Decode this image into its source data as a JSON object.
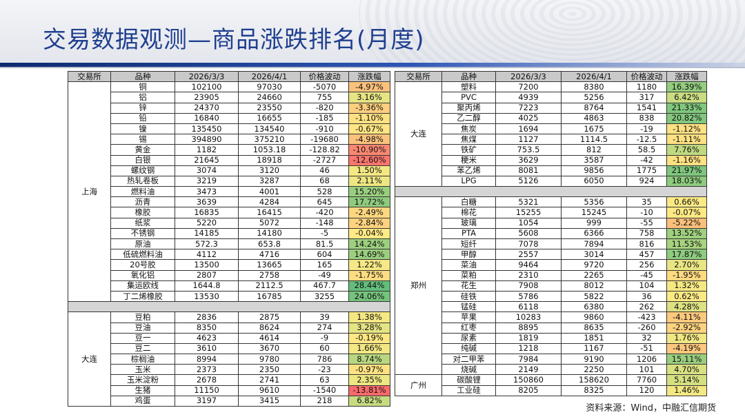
{
  "title": "交易数据观测—商品涨跌排名(月度)",
  "source": "资料来源：Wind，中融汇信期货",
  "headers": [
    "交易所",
    "品种",
    "2026/3/3",
    "2026/4/1",
    "价格波动",
    "涨跌幅"
  ],
  "colors": {
    "title": "#1f3f8f",
    "header_bg": "#c9c9c9",
    "change_scale": [
      "#f8696b",
      "#fcbf7b",
      "#ffeb84",
      "#b1d580",
      "#63be7b"
    ]
  },
  "left_table": [
    {
      "exchange": "上海",
      "rows": [
        {
          "name": "铜",
          "d1": "102100",
          "d2": "97030",
          "diff": "-5070",
          "pct": "-4.97%",
          "v": -4.97
        },
        {
          "name": "铝",
          "d1": "23905",
          "d2": "24660",
          "diff": "755",
          "pct": "3.16%",
          "v": 3.16
        },
        {
          "name": "锌",
          "d1": "24370",
          "d2": "23550",
          "diff": "-820",
          "pct": "-3.36%",
          "v": -3.36
        },
        {
          "name": "铅",
          "d1": "16840",
          "d2": "16655",
          "diff": "-185",
          "pct": "-1.10%",
          "v": -1.1
        },
        {
          "name": "镍",
          "d1": "135450",
          "d2": "134540",
          "diff": "-910",
          "pct": "-0.67%",
          "v": -0.67
        },
        {
          "name": "锡",
          "d1": "394890",
          "d2": "375210",
          "diff": "-19680",
          "pct": "-4.98%",
          "v": -4.98
        },
        {
          "name": "黄金",
          "d1": "1182",
          "d2": "1053.18",
          "diff": "-128.82",
          "pct": "-10.90%",
          "v": -10.9
        },
        {
          "name": "白银",
          "d1": "21645",
          "d2": "18918",
          "diff": "-2727",
          "pct": "-12.60%",
          "v": -12.6
        },
        {
          "name": "螺纹钢",
          "d1": "3074",
          "d2": "3120",
          "diff": "46",
          "pct": "1.50%",
          "v": 1.5
        },
        {
          "name": "热轧卷板",
          "d1": "3219",
          "d2": "3287",
          "diff": "68",
          "pct": "2.11%",
          "v": 2.11
        },
        {
          "name": "燃料油",
          "d1": "3473",
          "d2": "4001",
          "diff": "528",
          "pct": "15.20%",
          "v": 15.2
        },
        {
          "name": "沥青",
          "d1": "3639",
          "d2": "4284",
          "diff": "645",
          "pct": "17.72%",
          "v": 17.72
        },
        {
          "name": "橡胶",
          "d1": "16835",
          "d2": "16415",
          "diff": "-420",
          "pct": "-2.49%",
          "v": -2.49
        },
        {
          "name": "纸浆",
          "d1": "5220",
          "d2": "5072",
          "diff": "-148",
          "pct": "-2.84%",
          "v": -2.84
        },
        {
          "name": "不锈钢",
          "d1": "14185",
          "d2": "14180",
          "diff": "-5",
          "pct": "-0.04%",
          "v": -0.04
        },
        {
          "name": "原油",
          "d1": "572.3",
          "d2": "653.8",
          "diff": "81.5",
          "pct": "14.24%",
          "v": 14.24
        },
        {
          "name": "低硫燃料油",
          "d1": "4112",
          "d2": "4716",
          "diff": "604",
          "pct": "14.69%",
          "v": 14.69
        },
        {
          "name": "20号胶",
          "d1": "13500",
          "d2": "13665",
          "diff": "165",
          "pct": "1.22%",
          "v": 1.22
        },
        {
          "name": "氧化铝",
          "d1": "2807",
          "d2": "2758",
          "diff": "-49",
          "pct": "-1.75%",
          "v": -1.75
        },
        {
          "name": "集运欧线",
          "d1": "1644.8",
          "d2": "2112.5",
          "diff": "467.7",
          "pct": "28.44%",
          "v": 28.44
        },
        {
          "name": "丁二烯橡胶",
          "d1": "13530",
          "d2": "16785",
          "diff": "3255",
          "pct": "24.06%",
          "v": 24.06
        }
      ]
    },
    {
      "gap": true
    },
    {
      "exchange": "大连",
      "rows": [
        {
          "name": "豆粕",
          "d1": "2836",
          "d2": "2875",
          "diff": "39",
          "pct": "1.38%",
          "v": 1.38
        },
        {
          "name": "豆油",
          "d1": "8350",
          "d2": "8624",
          "diff": "274",
          "pct": "3.28%",
          "v": 3.28
        },
        {
          "name": "豆一",
          "d1": "4623",
          "d2": "4614",
          "diff": "-9",
          "pct": "-0.19%",
          "v": -0.19
        },
        {
          "name": "豆二",
          "d1": "3610",
          "d2": "3670",
          "diff": "60",
          "pct": "1.66%",
          "v": 1.66
        },
        {
          "name": "棕榈油",
          "d1": "8994",
          "d2": "9780",
          "diff": "786",
          "pct": "8.74%",
          "v": 8.74
        },
        {
          "name": "玉米",
          "d1": "2373",
          "d2": "2350",
          "diff": "-23",
          "pct": "-0.97%",
          "v": -0.97
        },
        {
          "name": "玉米淀粉",
          "d1": "2678",
          "d2": "2741",
          "diff": "63",
          "pct": "2.35%",
          "v": 2.35
        },
        {
          "name": "生猪",
          "d1": "11150",
          "d2": "9610",
          "diff": "-1540",
          "pct": "-13.81%",
          "v": -13.81
        },
        {
          "name": "鸡蛋",
          "d1": "3197",
          "d2": "3415",
          "diff": "218",
          "pct": "6.82%",
          "v": 6.82
        }
      ]
    }
  ],
  "right_table": [
    {
      "exchange": "大连",
      "rows": [
        {
          "name": "塑料",
          "d1": "7200",
          "d2": "8380",
          "diff": "1180",
          "pct": "16.39%",
          "v": 16.39
        },
        {
          "name": "PVC",
          "d1": "4939",
          "d2": "5256",
          "diff": "317",
          "pct": "6.42%",
          "v": 6.42
        },
        {
          "name": "聚丙烯",
          "d1": "7223",
          "d2": "8764",
          "diff": "1541",
          "pct": "21.33%",
          "v": 21.33
        },
        {
          "name": "乙二醇",
          "d1": "4025",
          "d2": "4863",
          "diff": "838",
          "pct": "20.82%",
          "v": 20.82
        },
        {
          "name": "焦炭",
          "d1": "1694",
          "d2": "1675",
          "diff": "-19",
          "pct": "-1.12%",
          "v": -1.12
        },
        {
          "name": "焦煤",
          "d1": "1127",
          "d2": "1114.5",
          "diff": "-12.5",
          "pct": "-1.11%",
          "v": -1.11
        },
        {
          "name": "铁矿",
          "d1": "753.5",
          "d2": "812",
          "diff": "58.5",
          "pct": "7.76%",
          "v": 7.76
        },
        {
          "name": "粳米",
          "d1": "3629",
          "d2": "3587",
          "diff": "-42",
          "pct": "-1.16%",
          "v": -1.16
        },
        {
          "name": "苯乙烯",
          "d1": "8081",
          "d2": "9856",
          "diff": "1775",
          "pct": "21.97%",
          "v": 21.97
        },
        {
          "name": "LPG",
          "d1": "5126",
          "d2": "6050",
          "diff": "924",
          "pct": "18.03%",
          "v": 18.03
        }
      ]
    },
    {
      "gap": true
    },
    {
      "exchange": "郑州",
      "rows": [
        {
          "name": "白糖",
          "d1": "5321",
          "d2": "5356",
          "diff": "35",
          "pct": "0.66%",
          "v": 0.66
        },
        {
          "name": "棉花",
          "d1": "15255",
          "d2": "15245",
          "diff": "-10",
          "pct": "-0.07%",
          "v": -0.07
        },
        {
          "name": "玻璃",
          "d1": "1054",
          "d2": "999",
          "diff": "-55",
          "pct": "-5.22%",
          "v": -5.22
        },
        {
          "name": "PTA",
          "d1": "5608",
          "d2": "6366",
          "diff": "758",
          "pct": "13.52%",
          "v": 13.52
        },
        {
          "name": "短纤",
          "d1": "7078",
          "d2": "7894",
          "diff": "816",
          "pct": "11.53%",
          "v": 11.53
        },
        {
          "name": "甲醇",
          "d1": "2557",
          "d2": "3014",
          "diff": "457",
          "pct": "17.87%",
          "v": 17.87
        },
        {
          "name": "菜油",
          "d1": "9464",
          "d2": "9720",
          "diff": "256",
          "pct": "2.70%",
          "v": 2.7
        },
        {
          "name": "菜粕",
          "d1": "2310",
          "d2": "2265",
          "diff": "-45",
          "pct": "-1.95%",
          "v": -1.95
        },
        {
          "name": "花生",
          "d1": "7908",
          "d2": "8012",
          "diff": "104",
          "pct": "1.32%",
          "v": 1.32
        },
        {
          "name": "硅铁",
          "d1": "5786",
          "d2": "5822",
          "diff": "36",
          "pct": "0.62%",
          "v": 0.62
        },
        {
          "name": "锰硅",
          "d1": "6118",
          "d2": "6380",
          "diff": "262",
          "pct": "4.28%",
          "v": 4.28
        },
        {
          "name": "苹果",
          "d1": "10283",
          "d2": "9860",
          "diff": "-423",
          "pct": "-4.11%",
          "v": -4.11
        },
        {
          "name": "红枣",
          "d1": "8895",
          "d2": "8635",
          "diff": "-260",
          "pct": "-2.92%",
          "v": -2.92
        },
        {
          "name": "尿素",
          "d1": "1819",
          "d2": "1851",
          "diff": "32",
          "pct": "1.76%",
          "v": 1.76
        },
        {
          "name": "纯碱",
          "d1": "1218",
          "d2": "1167",
          "diff": "-51",
          "pct": "-4.19%",
          "v": -4.19
        },
        {
          "name": "对二甲苯",
          "d1": "7984",
          "d2": "9190",
          "diff": "1206",
          "pct": "15.11%",
          "v": 15.11
        },
        {
          "name": "烧碱",
          "d1": "2149",
          "d2": "2250",
          "diff": "101",
          "pct": "4.70%",
          "v": 4.7
        }
      ]
    },
    {
      "exchange": "广州",
      "rows": [
        {
          "name": "碳酸锂",
          "d1": "150860",
          "d2": "158620",
          "diff": "7760",
          "pct": "5.14%",
          "v": 5.14
        },
        {
          "name": "工业硅",
          "d1": "8205",
          "d2": "8325",
          "diff": "120",
          "pct": "1.46%",
          "v": 1.46
        }
      ]
    }
  ]
}
